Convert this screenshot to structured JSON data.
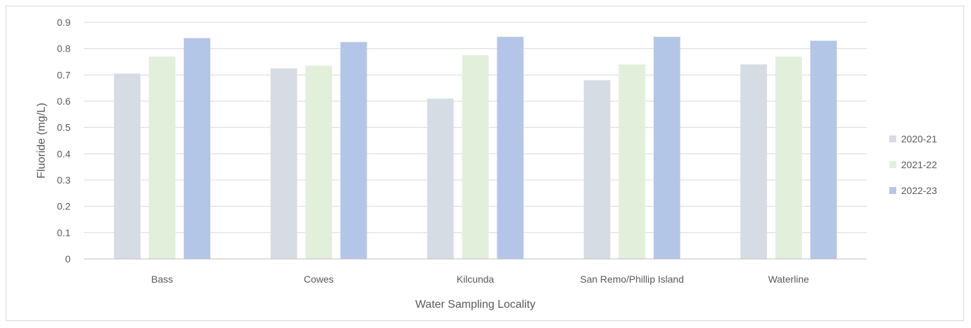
{
  "chart_data": {
    "type": "bar",
    "title": "",
    "xlabel": "Water Sampling Locality",
    "ylabel": "Fluoride (mg/L)",
    "ylim": [
      0,
      0.9
    ],
    "yticks": [
      "0",
      "0.1",
      "0.2",
      "0.3",
      "0.4",
      "0.5",
      "0.6",
      "0.7",
      "0.8",
      "0.9"
    ],
    "categories": [
      "Bass",
      "Cowes",
      "Kilcunda",
      "San Remo/Phillip Island",
      "Waterline"
    ],
    "series": [
      {
        "name": "2020-21",
        "color": "#d6dce4",
        "values": [
          0.705,
          0.725,
          0.61,
          0.68,
          0.74
        ]
      },
      {
        "name": "2021-22",
        "color": "#e2efda",
        "values": [
          0.77,
          0.735,
          0.775,
          0.74,
          0.77
        ]
      },
      {
        "name": "2022-23",
        "color": "#b4c6e7",
        "values": [
          0.84,
          0.825,
          0.845,
          0.845,
          0.83
        ]
      }
    ],
    "grid": true,
    "legend_position": "right"
  }
}
